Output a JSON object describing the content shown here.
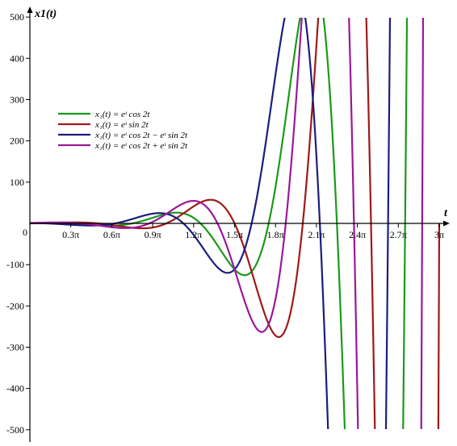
{
  "chart_data": {
    "type": "line",
    "xlabel": "t",
    "ylabel": "x1(t)",
    "xlim_over_pi": [
      0,
      3
    ],
    "ylim": [
      -500,
      500
    ],
    "grid": false,
    "legend_position": "top-left",
    "x_ticks": [
      {
        "value_over_pi": 0.3,
        "label": "0.3π"
      },
      {
        "value_over_pi": 0.6,
        "label": "0.6π"
      },
      {
        "value_over_pi": 0.9,
        "label": "0.9π"
      },
      {
        "value_over_pi": 1.2,
        "label": "1.2π"
      },
      {
        "value_over_pi": 1.5,
        "label": "1.5π"
      },
      {
        "value_over_pi": 1.8,
        "label": "1.8π"
      },
      {
        "value_over_pi": 2.1,
        "label": "2.1π"
      },
      {
        "value_over_pi": 2.4,
        "label": "2.4π"
      },
      {
        "value_over_pi": 2.7,
        "label": "2.7π"
      },
      {
        "value_over_pi": 3.0,
        "label": "3π"
      }
    ],
    "origin_label": "0",
    "y_ticks": [
      500,
      400,
      300,
      200,
      100,
      -100,
      -200,
      -300,
      -400,
      -500
    ],
    "series": [
      {
        "name": "x₁(t) = eᵗ cos 2t",
        "color": "#1a9a1a",
        "formula": "exp_cos2"
      },
      {
        "name": "x₁(t) = eᵗ sin 2t",
        "color": "#a01818",
        "formula": "exp_sin2"
      },
      {
        "name": "x₁(t) = eᵗ cos 2t − eᵗ sin 2t",
        "color": "#1c1c80",
        "formula": "exp_cos2_minus_sin2"
      },
      {
        "name": "x₁(t) = eᵗ cos 2t + eᵗ sin 2t",
        "color": "#9a189a",
        "formula": "exp_cos2_plus_sin2"
      }
    ]
  }
}
